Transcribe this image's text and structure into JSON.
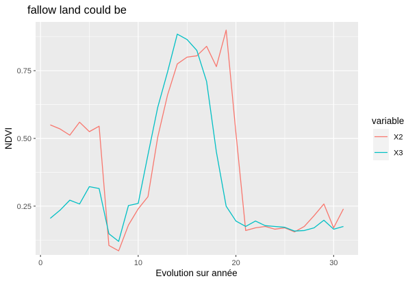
{
  "chart_data": {
    "type": "line",
    "title": "fallow land could be",
    "xlabel": "Evolution sur année",
    "ylabel": "NDVI",
    "xlim": [
      -0.5,
      32.5
    ],
    "ylim": [
      0.07,
      0.93
    ],
    "x_ticks": [
      0,
      10,
      20,
      30
    ],
    "x_tick_labels": [
      "0",
      "10",
      "20",
      "30"
    ],
    "y_ticks": [
      0.25,
      0.5,
      0.75
    ],
    "y_tick_labels": [
      "0.25",
      "0.50",
      "0.75"
    ],
    "grid": true,
    "legend": {
      "title": "variable",
      "position": "right"
    },
    "x": [
      1,
      2,
      3,
      4,
      5,
      6,
      7,
      8,
      9,
      10,
      11,
      12,
      13,
      14,
      15,
      16,
      17,
      18,
      19,
      20,
      21,
      22,
      23,
      24,
      25,
      26,
      27,
      28,
      29,
      30,
      31
    ],
    "series": [
      {
        "name": "X2",
        "color": "#F8766D",
        "values": [
          0.55,
          0.535,
          0.512,
          0.56,
          0.525,
          0.545,
          0.105,
          0.085,
          0.18,
          0.24,
          0.285,
          0.505,
          0.66,
          0.775,
          0.8,
          0.805,
          0.84,
          0.765,
          0.9,
          0.52,
          0.16,
          0.17,
          0.175,
          0.165,
          0.17,
          0.155,
          0.175,
          0.215,
          0.258,
          0.17,
          0.24
        ]
      },
      {
        "name": "X3",
        "color": "#00BFC4",
        "values": [
          0.205,
          0.235,
          0.272,
          0.258,
          0.322,
          0.315,
          0.148,
          0.12,
          0.252,
          0.26,
          0.44,
          0.615,
          0.745,
          0.885,
          0.865,
          0.825,
          0.71,
          0.45,
          0.25,
          0.195,
          0.175,
          0.195,
          0.178,
          0.175,
          0.172,
          0.158,
          0.16,
          0.17,
          0.198,
          0.165,
          0.175
        ]
      }
    ]
  }
}
